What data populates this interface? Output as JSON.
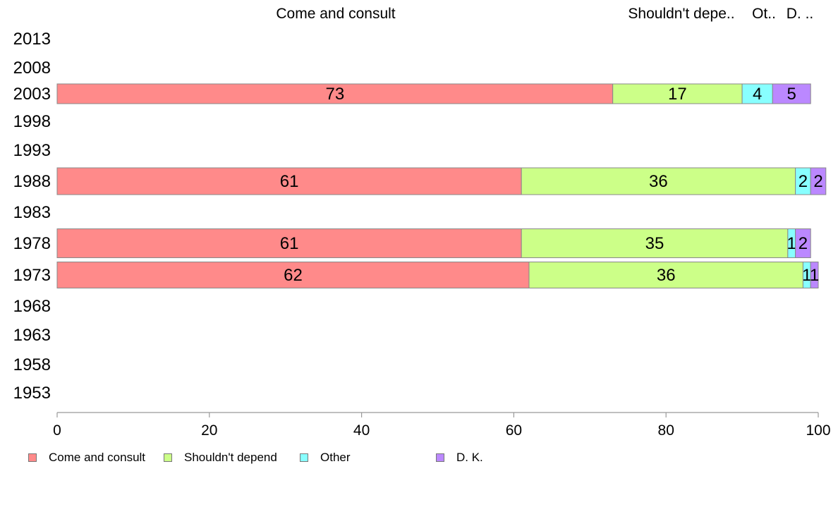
{
  "chart_data": {
    "type": "bar",
    "orientation": "horizontal",
    "stacked": true,
    "categories": [
      "2013",
      "2008",
      "2003",
      "1998",
      "1993",
      "1988",
      "1983",
      "1978",
      "1973",
      "1968",
      "1963",
      "1958",
      "1953"
    ],
    "series": [
      {
        "name": "Come and consult",
        "color": "#ff8a8a",
        "values": [
          null,
          null,
          73,
          null,
          null,
          61,
          null,
          61,
          62,
          null,
          null,
          null,
          null
        ]
      },
      {
        "name": "Shouldn't depend",
        "color": "#ccff88",
        "values": [
          null,
          null,
          17,
          null,
          null,
          36,
          null,
          35,
          36,
          null,
          null,
          null,
          null
        ]
      },
      {
        "name": "Other",
        "color": "#88ffff",
        "values": [
          null,
          null,
          4,
          null,
          null,
          2,
          null,
          1,
          1,
          null,
          null,
          null,
          null
        ]
      },
      {
        "name": "D. K.",
        "color": "#bb88ff",
        "values": [
          null,
          null,
          5,
          null,
          null,
          2,
          null,
          2,
          1,
          null,
          null,
          null,
          null
        ]
      }
    ],
    "top_labels": [
      "Come and consult",
      "Shouldn't depe..",
      "Ot..",
      "D. .."
    ],
    "x_ticks": [
      "0",
      "20",
      "40",
      "60",
      "80",
      "100"
    ],
    "xlim": [
      0,
      100
    ],
    "xlabel": "",
    "ylabel": "",
    "grid": false,
    "legend_position": "bottom-left"
  }
}
